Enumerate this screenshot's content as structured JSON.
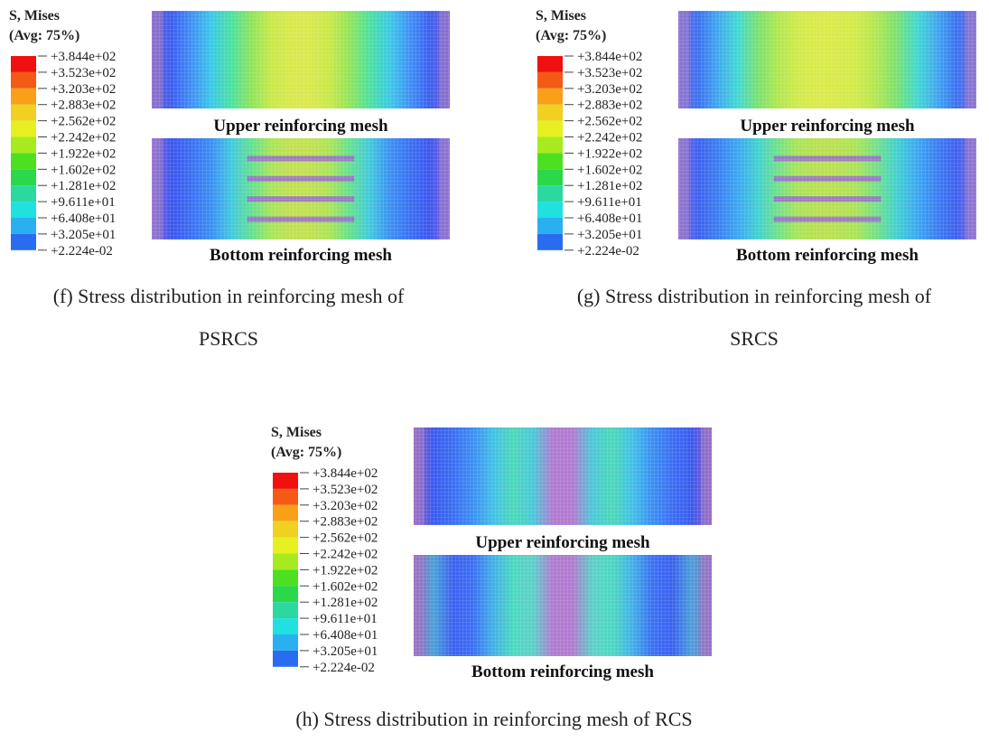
{
  "panels": [
    {
      "legend_title": "S, Mises",
      "legend_subtitle": "(Avg: 75%)",
      "legend_labels": [
        "+3.844e+02",
        "+3.523e+02",
        "+3.203e+02",
        "+2.883e+02",
        "+2.562e+02",
        "+2.242e+02",
        "+1.922e+02",
        "+1.602e+02",
        "+1.281e+02",
        "+9.611e+01",
        "+6.408e+01",
        "+3.205e+01",
        "+2.224e-02"
      ],
      "upper_label": "Upper reinforcing mesh",
      "bottom_label": "Bottom reinforcing mesh",
      "caption_lines": [
        "(f) Stress distribution in reinforcing mesh of",
        "PSRCS"
      ]
    },
    {
      "legend_title": "S, Mises",
      "legend_subtitle": "(Avg: 75%)",
      "legend_labels": [
        "+3.844e+02",
        "+3.523e+02",
        "+3.203e+02",
        "+2.883e+02",
        "+2.562e+02",
        "+2.242e+02",
        "+1.922e+02",
        "+1.602e+02",
        "+1.281e+02",
        "+9.611e+01",
        "+6.408e+01",
        "+3.205e+01",
        "+2.224e-02"
      ],
      "upper_label": "Upper reinforcing mesh",
      "bottom_label": "Bottom reinforcing mesh",
      "caption_lines": [
        "(g) Stress distribution in reinforcing mesh of",
        "SRCS"
      ]
    },
    {
      "legend_title": "S, Mises",
      "legend_subtitle": "(Avg: 75%)",
      "legend_labels": [
        "+3.844e+02",
        "+3.523e+02",
        "+3.203e+02",
        "+2.883e+02",
        "+2.562e+02",
        "+2.242e+02",
        "+1.922e+02",
        "+1.602e+02",
        "+1.281e+02",
        "+9.611e+01",
        "+6.408e+01",
        "+3.205e+01",
        "+2.224e-02"
      ],
      "upper_label": "Upper reinforcing mesh",
      "bottom_label": "Bottom reinforcing mesh",
      "caption_lines": [
        "(h) Stress distribution in reinforcing mesh of RCS"
      ]
    }
  ]
}
